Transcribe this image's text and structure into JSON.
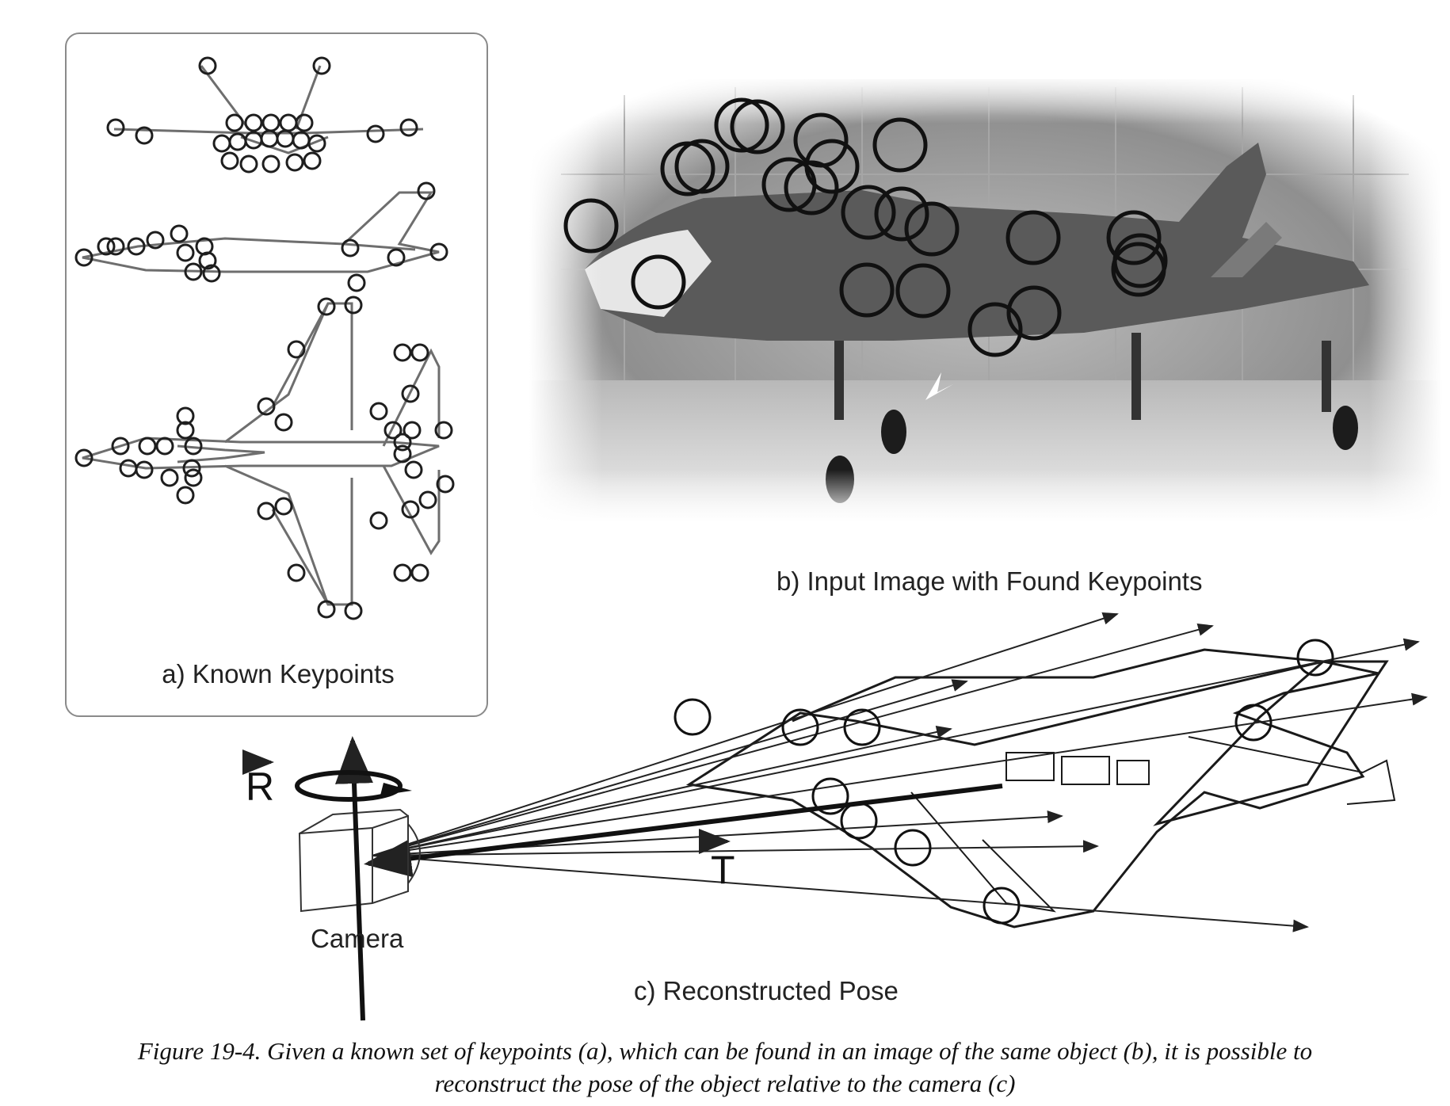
{
  "panels": {
    "a_label": "a) Known  Keypoints",
    "b_label": "b) Input Image with Found Keypoints",
    "c_label": "c) Reconstructed Pose"
  },
  "pose": {
    "rotation_symbol": "R",
    "translation_symbol": "T",
    "camera_label": "Camera"
  },
  "caption": {
    "line1": "Figure 19-4. Given a known set of keypoints (a), which can be found in an image of the same object (b), it is possible to",
    "line2": "reconstruct the pose of the object relative to the camera (c)"
  }
}
